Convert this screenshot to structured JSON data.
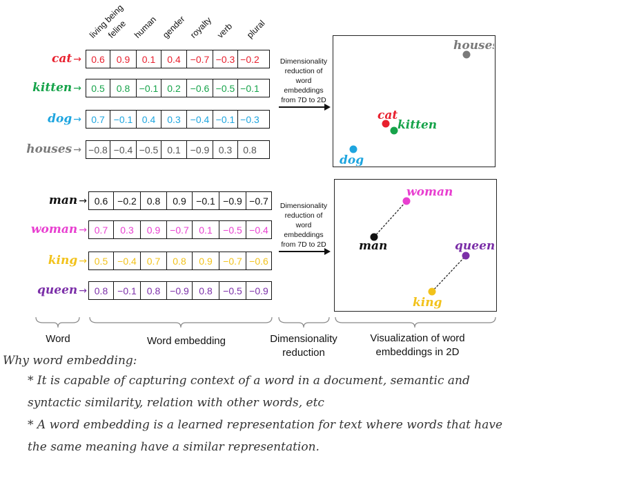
{
  "dimensions": [
    "living being",
    "feline",
    "human",
    "gender",
    "royalty",
    "verb",
    "plural"
  ],
  "group1": [
    {
      "word": "cat",
      "color": "#e8202e",
      "values": [
        "0.6",
        "0.9",
        "0.1",
        "0.4",
        "−0.7",
        "−0.3",
        "−0.2"
      ]
    },
    {
      "word": "kitten",
      "color": "#16a34a",
      "values": [
        "0.5",
        "0.8",
        "−0.1",
        "0.2",
        "−0.6",
        "−0.5",
        "−0.1"
      ]
    },
    {
      "word": "dog",
      "color": "#1ea5df",
      "values": [
        "0.7",
        "−0.1",
        "0.4",
        "0.3",
        "−0.4",
        "−0.1",
        "−0.3"
      ]
    },
    {
      "word": "houses",
      "color": "#7a7a7a",
      "values": [
        "−0.8",
        "−0.4",
        "−0.5",
        "0.1",
        "−0.9",
        "0.3",
        "0.8"
      ]
    }
  ],
  "group2": [
    {
      "word": "man",
      "color": "#111111",
      "values": [
        "0.6",
        "−0.2",
        "0.8",
        "0.9",
        "−0.1",
        "−0.9",
        "−0.7"
      ]
    },
    {
      "word": "woman",
      "color": "#e83fd0",
      "values": [
        "0.7",
        "0.3",
        "0.9",
        "−0.7",
        "0.1",
        "−0.5",
        "−0.4"
      ]
    },
    {
      "word": "king",
      "color": "#f2c21b",
      "values": [
        "0.5",
        "−0.4",
        "0.7",
        "0.8",
        "0.9",
        "−0.7",
        "−0.6"
      ]
    },
    {
      "word": "queen",
      "color": "#7b2fa8",
      "values": [
        "0.8",
        "−0.1",
        "0.8",
        "−0.9",
        "0.8",
        "−0.5",
        "−0.9"
      ]
    }
  ],
  "arrow_symbol": "→",
  "reduction": {
    "lines": [
      "Dimensionality",
      "reduction of",
      "word",
      "embeddings",
      "from 7D to 2D"
    ]
  },
  "bottom_labels": {
    "word": "Word",
    "embedding": "Word embedding",
    "reduction_line1": "Dimensionality",
    "reduction_line2": "reduction",
    "viz_line1": "Visualization of word",
    "viz_line2": "embeddings  in 2D"
  },
  "text": {
    "heading": "Why word embedding:",
    "line1": "* It is capable of capturing context of a word in a document, semantic and",
    "line2": "syntactic similarity, relation with other words, etc",
    "line3": "* A word embedding is a learned representation for text where words that have",
    "line4": "the same meaning have a similar representation."
  }
}
